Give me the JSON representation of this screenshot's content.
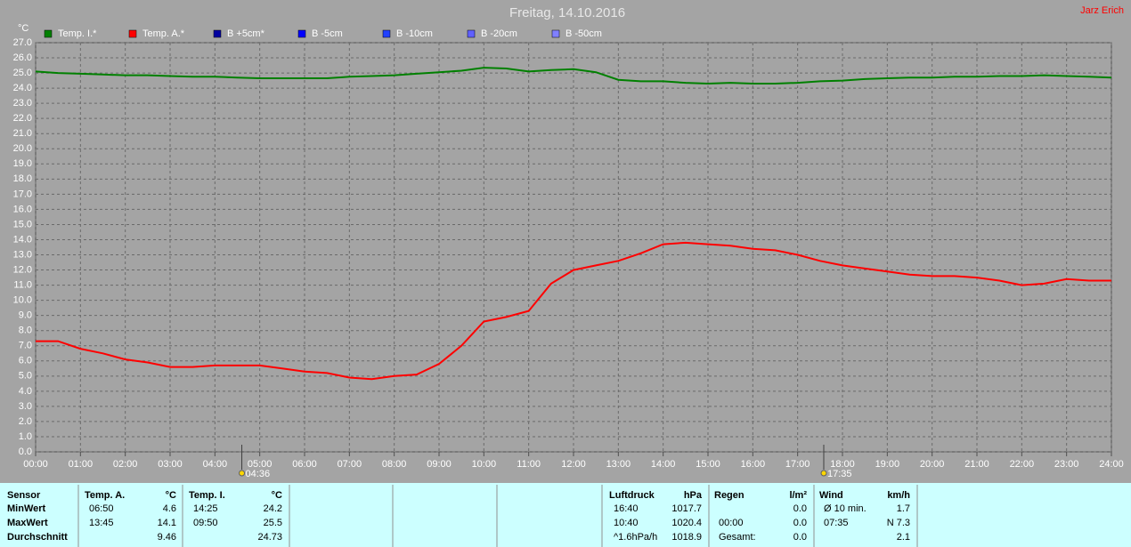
{
  "chart_data": {
    "type": "line",
    "title": "Freitag, 14.10.2016",
    "author": "Jarz Erich",
    "y_unit": "°C",
    "x": [
      0,
      0.5,
      1,
      1.5,
      2,
      2.5,
      3,
      3.5,
      4,
      4.5,
      5,
      5.5,
      6,
      6.5,
      7,
      7.5,
      8,
      8.5,
      9,
      9.5,
      10,
      10.5,
      11,
      11.5,
      12,
      12.5,
      13,
      13.5,
      14,
      14.5,
      15,
      15.5,
      16,
      16.5,
      17,
      17.5,
      18,
      18.5,
      19,
      19.5,
      20,
      20.5,
      21,
      21.5,
      22,
      22.5,
      23,
      23.5,
      24
    ],
    "series": [
      {
        "name": "Temp. I.*",
        "color": "#008000",
        "values": [
          25.1,
          25.0,
          24.95,
          24.9,
          24.85,
          24.85,
          24.8,
          24.75,
          24.75,
          24.7,
          24.65,
          24.65,
          24.65,
          24.65,
          24.75,
          24.8,
          24.85,
          24.95,
          25.05,
          25.15,
          25.35,
          25.3,
          25.1,
          25.2,
          25.25,
          25.05,
          24.55,
          24.45,
          24.45,
          24.35,
          24.3,
          24.35,
          24.3,
          24.3,
          24.35,
          24.45,
          24.5,
          24.6,
          24.65,
          24.7,
          24.7,
          24.75,
          24.75,
          24.8,
          24.8,
          24.85,
          24.8,
          24.75,
          24.7
        ]
      },
      {
        "name": "Temp. A.*",
        "color": "#ff0000",
        "values": [
          7.3,
          7.3,
          6.8,
          6.5,
          6.1,
          5.9,
          5.6,
          5.6,
          5.7,
          5.7,
          5.7,
          5.5,
          5.3,
          5.2,
          4.9,
          4.8,
          5.0,
          5.1,
          5.8,
          7.0,
          8.6,
          8.9,
          9.3,
          11.1,
          12.0,
          12.3,
          12.6,
          13.1,
          13.7,
          13.8,
          13.7,
          13.6,
          13.4,
          13.3,
          13.0,
          12.6,
          12.3,
          12.1,
          11.9,
          11.7,
          11.6,
          11.6,
          11.5,
          11.3,
          11.0,
          11.1,
          11.4,
          11.3,
          11.3
        ]
      }
    ],
    "legend_entries": [
      {
        "name": "B +5cm*",
        "color": "#0000a0"
      },
      {
        "name": "B -5cm",
        "color": "#0000ff"
      },
      {
        "name": "B -10cm",
        "color": "#2040ff"
      },
      {
        "name": "B -20cm",
        "color": "#6060ff"
      },
      {
        "name": "B -50cm",
        "color": "#8080ff"
      }
    ],
    "xlim": [
      0,
      24
    ],
    "xticks": [
      {
        "value": 0,
        "label": "00:00"
      },
      {
        "value": 1,
        "label": "01:00"
      },
      {
        "value": 2,
        "label": "02:00"
      },
      {
        "value": 3,
        "label": "03:00"
      },
      {
        "value": 4,
        "label": "04:00"
      },
      {
        "value": 5,
        "label": "05:00"
      },
      {
        "value": 6,
        "label": "06:00"
      },
      {
        "value": 7,
        "label": "07:00"
      },
      {
        "value": 8,
        "label": "08:00"
      },
      {
        "value": 9,
        "label": "09:00"
      },
      {
        "value": 10,
        "label": "10:00"
      },
      {
        "value": 11,
        "label": "11:00"
      },
      {
        "value": 12,
        "label": "12:00"
      },
      {
        "value": 13,
        "label": "13:00"
      },
      {
        "value": 14,
        "label": "14:00"
      },
      {
        "value": 15,
        "label": "15:00"
      },
      {
        "value": 16,
        "label": "16:00"
      },
      {
        "value": 17,
        "label": "17:00"
      },
      {
        "value": 18,
        "label": "18:00"
      },
      {
        "value": 19,
        "label": "19:00"
      },
      {
        "value": 20,
        "label": "20:00"
      },
      {
        "value": 21,
        "label": "21:00"
      },
      {
        "value": 22,
        "label": "22:00"
      },
      {
        "value": 23,
        "label": "23:00"
      },
      {
        "value": 24,
        "label": "24:00"
      }
    ],
    "ylim": [
      0,
      27
    ],
    "yticks": [
      {
        "value": 0,
        "label": "0.0"
      },
      {
        "value": 1,
        "label": "1.0"
      },
      {
        "value": 2,
        "label": "2.0"
      },
      {
        "value": 3,
        "label": "3.0"
      },
      {
        "value": 4,
        "label": "4.0"
      },
      {
        "value": 5,
        "label": "5.0"
      },
      {
        "value": 6,
        "label": "6.0"
      },
      {
        "value": 7,
        "label": "7.0"
      },
      {
        "value": 8,
        "label": "8.0"
      },
      {
        "value": 9,
        "label": "9.0"
      },
      {
        "value": 10,
        "label": "10.0"
      },
      {
        "value": 11,
        "label": "11.0"
      },
      {
        "value": 12,
        "label": "12.0"
      },
      {
        "value": 13,
        "label": "13.0"
      },
      {
        "value": 14,
        "label": "14.0"
      },
      {
        "value": 15,
        "label": "15.0"
      },
      {
        "value": 16,
        "label": "16.0"
      },
      {
        "value": 17,
        "label": "17.0"
      },
      {
        "value": 18,
        "label": "18.0"
      },
      {
        "value": 19,
        "label": "19.0"
      },
      {
        "value": 20,
        "label": "20.0"
      },
      {
        "value": 21,
        "label": "21.0"
      },
      {
        "value": 22,
        "label": "22.0"
      },
      {
        "value": 23,
        "label": "23.0"
      },
      {
        "value": 24,
        "label": "24.0"
      },
      {
        "value": 25,
        "label": "25.0"
      },
      {
        "value": 26,
        "label": "26.0"
      },
      {
        "value": 27,
        "label": "27.0"
      }
    ],
    "grid": true,
    "annotations": [
      {
        "x": 4.6,
        "label": "04:36"
      },
      {
        "x": 17.583,
        "label": "17:35"
      }
    ]
  },
  "stats": {
    "row_labels": [
      "Sensor",
      "MinWert",
      "MaxWert",
      "Durchschnitt"
    ],
    "groups": [
      {
        "header": [
          "Temp. A.",
          "°C"
        ],
        "rows": [
          [
            "06:50",
            "4.6"
          ],
          [
            "13:45",
            "14.1"
          ],
          [
            null,
            "9.46"
          ]
        ]
      },
      {
        "header": [
          "Temp. I.",
          "°C"
        ],
        "rows": [
          [
            "14:25",
            "24.2"
          ],
          [
            "09:50",
            "25.5"
          ],
          [
            null,
            "24.73"
          ]
        ]
      },
      {
        "header": [
          "Luftdruck",
          "hPa"
        ],
        "rows": [
          [
            "16:40",
            "1017.7"
          ],
          [
            "10:40",
            "1020.4"
          ],
          [
            "^1.6hPa/h",
            "1018.9"
          ]
        ]
      },
      {
        "header": [
          "Regen",
          "l/m²"
        ],
        "rows": [
          [
            null,
            "0.0"
          ],
          [
            "00:00",
            "0.0"
          ],
          [
            "Gesamt:",
            "0.0"
          ]
        ]
      },
      {
        "header": [
          "Wind",
          "km/h"
        ],
        "rows": [
          [
            "Ø 10 min.",
            "1.7"
          ],
          [
            "07:35",
            "N 7.3"
          ],
          [
            null,
            "2.1"
          ]
        ]
      }
    ]
  }
}
